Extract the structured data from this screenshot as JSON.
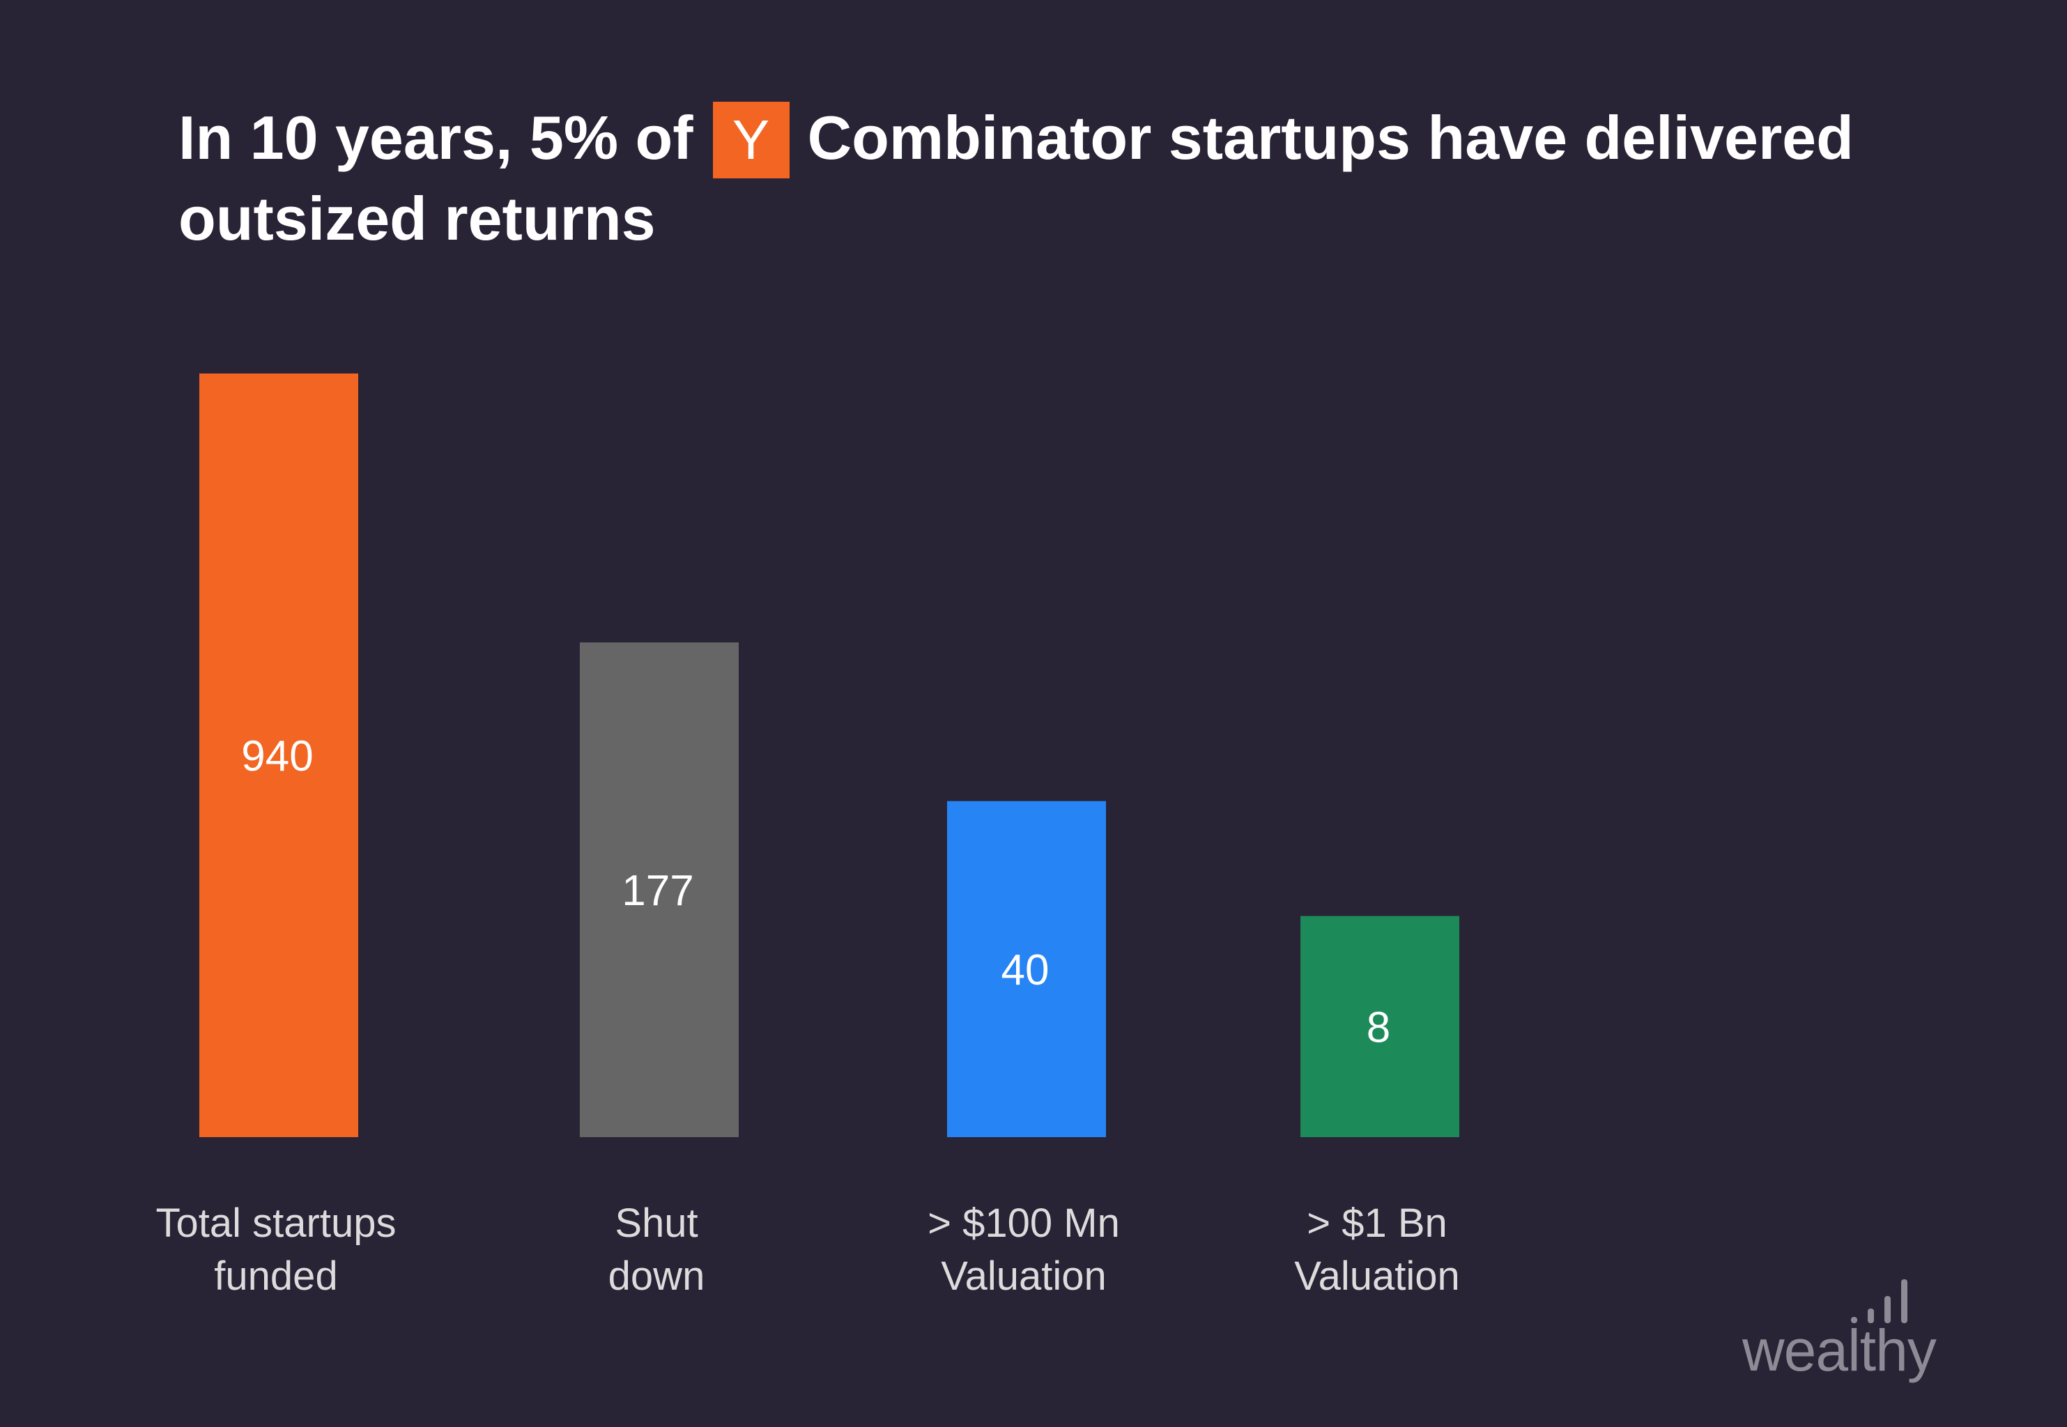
{
  "title": {
    "part1": "In 10 years, 5% of",
    "logo_letter": "Y",
    "part2": "Combinator startups have delivered outsized returns"
  },
  "brand": {
    "name": "wealthy"
  },
  "colors": {
    "background": "#282335",
    "logo": "#f26522"
  },
  "chart_data": {
    "type": "bar",
    "categories": [
      [
        "Total startups",
        "funded"
      ],
      [
        "Shut",
        "down"
      ],
      [
        "> $100 Mn",
        "Valuation"
      ],
      [
        "> $1 Bn",
        "Valuation"
      ]
    ],
    "values": [
      940,
      177,
      40,
      8
    ],
    "value_labels": [
      "940",
      "177",
      "40",
      "8"
    ],
    "colors": [
      "#f26522",
      "#666666",
      "#2684f5",
      "#1d8a5a"
    ],
    "grid": false,
    "legend": "none"
  }
}
